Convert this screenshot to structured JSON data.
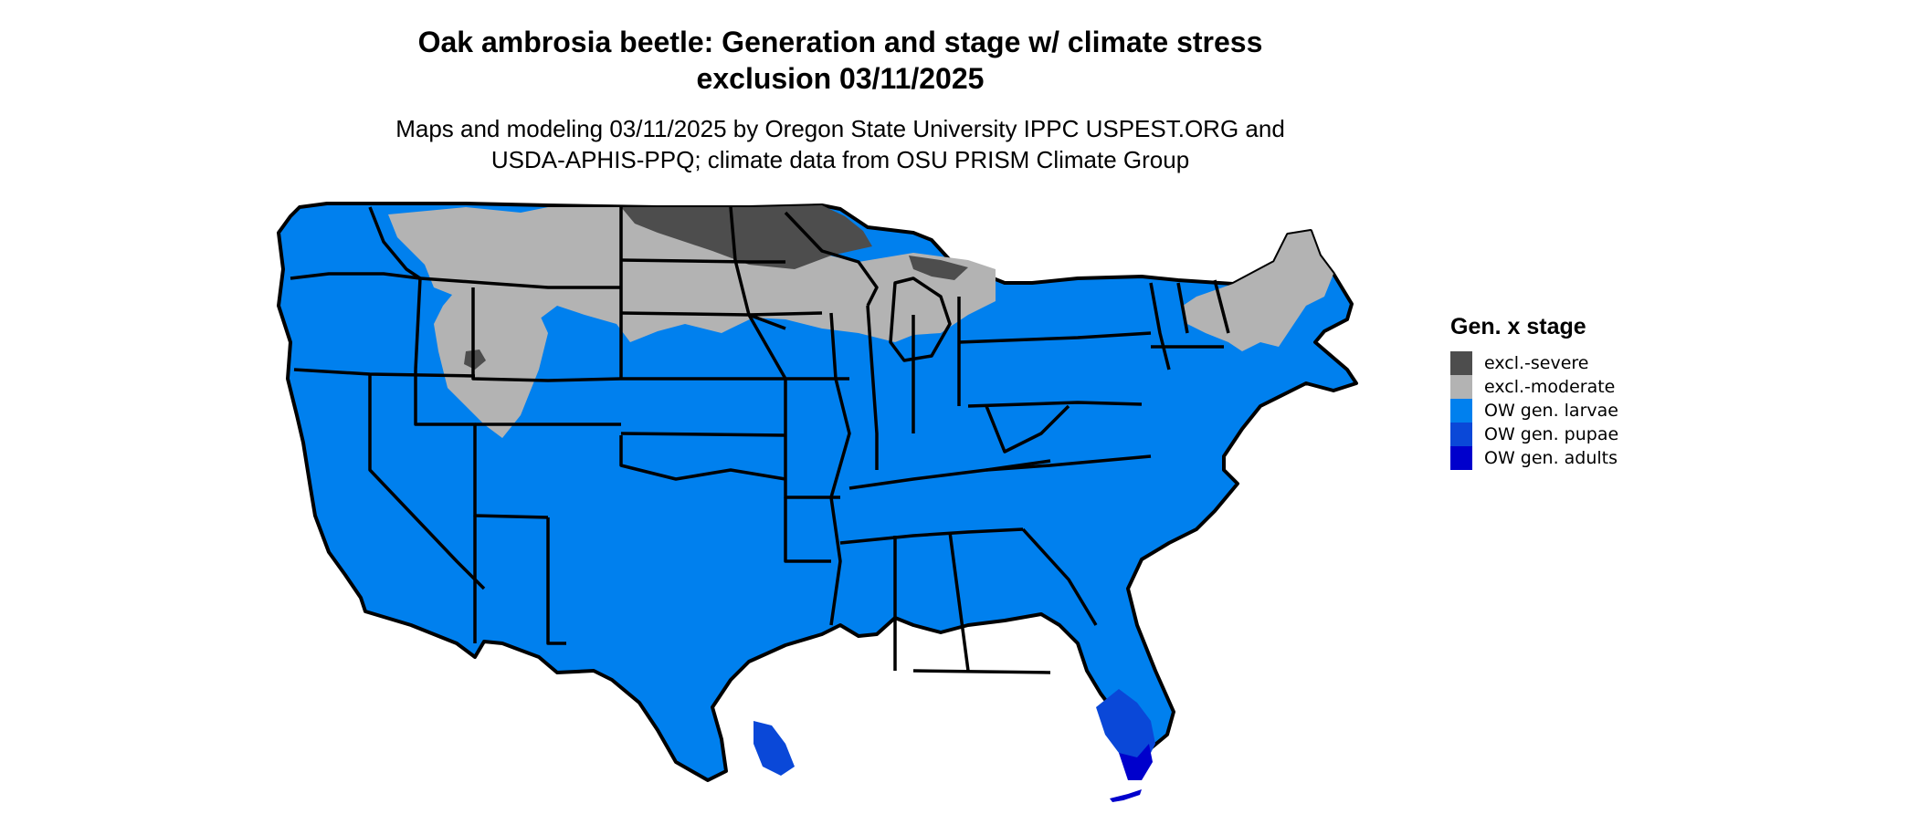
{
  "title_line1": "Oak ambrosia beetle: Generation and stage w/ climate stress",
  "title_line2": "exclusion 03/11/2025",
  "subtitle_line1": "Maps and modeling 03/11/2025 by Oregon State University IPPC USPEST.ORG and",
  "subtitle_line2": "USDA-APHIS-PPQ; climate data from OSU PRISM Climate Group",
  "legend": {
    "title": "Gen. x stage",
    "items": [
      {
        "label": "excl.-severe",
        "color": "#4d4d4d"
      },
      {
        "label": "excl.-moderate",
        "color": "#b3b3b3"
      },
      {
        "label": "OW gen. larvae",
        "color": "#0080ee"
      },
      {
        "label": "OW gen. pupae",
        "color": "#0a48d8"
      },
      {
        "label": "OW gen. adults",
        "color": "#0000cc"
      }
    ]
  },
  "colors": {
    "border": "#000000",
    "background": "#ffffff"
  }
}
